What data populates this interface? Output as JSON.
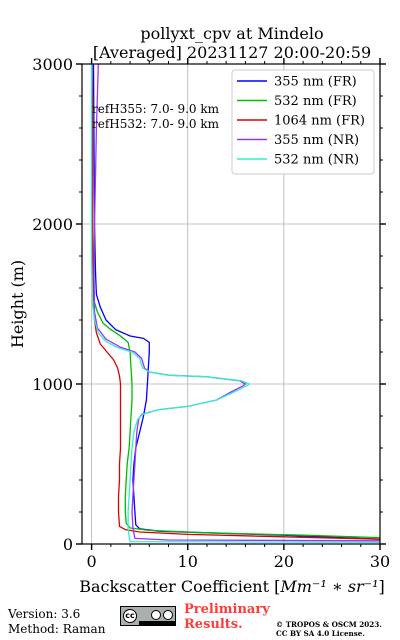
{
  "title_line1": "pollyxt_cpv at Mindelo",
  "title_line2": "[Averaged] 20231127 20:00-20:59",
  "ref_h355": "refH355:  7.0- 9.0 km",
  "ref_h532": "refH532:  7.0- 9.0 km",
  "version": "Version: 3.6",
  "method": "Method: Raman",
  "preliminary_line1": "Preliminary",
  "preliminary_line2": "Results.",
  "copyright_line1": "© TROPOS & OSCM 2023.",
  "copyright_line2": "CC BY SA 4.0 License.",
  "chart_data": {
    "type": "line",
    "xlabel_main": "Backscatter Coefficient [",
    "xlabel_unit": "Mm⁻¹ ∗ sr⁻¹",
    "xlabel_end": "]",
    "ylabel": "Height (m)",
    "xlim": [
      -1,
      30
    ],
    "ylim": [
      0,
      3000
    ],
    "x_ticks": [
      0,
      10,
      20,
      30
    ],
    "y_ticks": [
      0,
      1000,
      2000,
      3000
    ],
    "grid": true,
    "legend_position": "top-right",
    "series": [
      {
        "name": "355 nm (FR)",
        "color": "#0000ff",
        "points": [
          [
            30,
            30
          ],
          [
            26,
            40
          ],
          [
            20,
            55
          ],
          [
            12,
            70
          ],
          [
            7,
            80
          ],
          [
            5,
            95
          ],
          [
            4.6,
            120
          ],
          [
            4.5,
            200
          ],
          [
            4.4,
            300
          ],
          [
            4.3,
            400
          ],
          [
            4.4,
            500
          ],
          [
            4.6,
            600
          ],
          [
            5.0,
            700
          ],
          [
            5.4,
            800
          ],
          [
            5.7,
            900
          ],
          [
            5.8,
            1000
          ],
          [
            5.9,
            1100
          ],
          [
            6.0,
            1200
          ],
          [
            6.0,
            1260
          ],
          [
            5.4,
            1285
          ],
          [
            4.0,
            1300
          ],
          [
            2.5,
            1340
          ],
          [
            1.5,
            1400
          ],
          [
            0.9,
            1480
          ],
          [
            0.5,
            1560
          ],
          [
            0.4,
            1700
          ],
          [
            0.3,
            2000
          ],
          [
            0.25,
            2500
          ],
          [
            0.2,
            3000
          ]
        ]
      },
      {
        "name": "532 nm (FR)",
        "color": "#00bb00",
        "points": [
          [
            30,
            40
          ],
          [
            22,
            55
          ],
          [
            12,
            70
          ],
          [
            6,
            85
          ],
          [
            4,
            100
          ],
          [
            3.6,
            130
          ],
          [
            3.5,
            200
          ],
          [
            3.5,
            300
          ],
          [
            3.6,
            400
          ],
          [
            3.7,
            500
          ],
          [
            3.9,
            600
          ],
          [
            4.0,
            700
          ],
          [
            4.1,
            800
          ],
          [
            4.2,
            900
          ],
          [
            4.2,
            1000
          ],
          [
            4.1,
            1100
          ],
          [
            4.0,
            1200
          ],
          [
            3.8,
            1260
          ],
          [
            3.0,
            1300
          ],
          [
            2.0,
            1340
          ],
          [
            1.2,
            1380
          ],
          [
            0.6,
            1450
          ],
          [
            0.2,
            1530
          ],
          [
            0.1,
            1700
          ],
          [
            0.05,
            2000
          ],
          [
            0.05,
            2500
          ],
          [
            0.0,
            3000
          ]
        ]
      },
      {
        "name": "1064 nm (FR)",
        "color": "#dd0000",
        "points": [
          [
            30,
            30
          ],
          [
            20,
            45
          ],
          [
            10,
            60
          ],
          [
            5,
            75
          ],
          [
            3.5,
            90
          ],
          [
            2.9,
            110
          ],
          [
            2.8,
            200
          ],
          [
            2.8,
            300
          ],
          [
            2.9,
            400
          ],
          [
            2.9,
            500
          ],
          [
            3.0,
            600
          ],
          [
            3.0,
            700
          ],
          [
            3.0,
            800
          ],
          [
            3.0,
            900
          ],
          [
            3.0,
            1000
          ],
          [
            2.9,
            1050
          ],
          [
            2.7,
            1100
          ],
          [
            2.3,
            1150
          ],
          [
            1.6,
            1200
          ],
          [
            0.9,
            1250
          ],
          [
            0.5,
            1320
          ],
          [
            0.3,
            1400
          ],
          [
            0.2,
            1600
          ],
          [
            0.1,
            2000
          ],
          [
            0.1,
            2500
          ],
          [
            0.05,
            3000
          ]
        ]
      },
      {
        "name": "355 nm (NR)",
        "color": "#9933ff",
        "points": [
          [
            30,
            20
          ],
          [
            8,
            25
          ],
          [
            4.5,
            35
          ],
          [
            4.3,
            100
          ],
          [
            4.2,
            200
          ],
          [
            4.3,
            300
          ],
          [
            4.4,
            400
          ],
          [
            4.5,
            500
          ],
          [
            4.6,
            600
          ],
          [
            4.7,
            700
          ],
          [
            4.9,
            780
          ],
          [
            5.2,
            810
          ],
          [
            7,
            840
          ],
          [
            10,
            860
          ],
          [
            13,
            900
          ],
          [
            14.5,
            950
          ],
          [
            15.8,
            990
          ],
          [
            16.0,
            1000
          ],
          [
            15.4,
            1020
          ],
          [
            12,
            1045
          ],
          [
            8,
            1055
          ],
          [
            6,
            1075
          ],
          [
            5.5,
            1100
          ],
          [
            5.2,
            1160
          ],
          [
            4.5,
            1200
          ],
          [
            3.0,
            1230
          ],
          [
            1.5,
            1280
          ],
          [
            0.6,
            1350
          ],
          [
            0.3,
            1450
          ],
          [
            0.25,
            1700
          ],
          [
            0.3,
            2000
          ],
          [
            0.4,
            2300
          ],
          [
            0.5,
            2600
          ],
          [
            0.6,
            2800
          ],
          [
            0.7,
            3000
          ]
        ]
      },
      {
        "name": "532 nm (NR)",
        "color": "#33eecc",
        "points": [
          [
            30,
            10
          ],
          [
            4,
            15
          ],
          [
            3.9,
            50
          ],
          [
            3.8,
            100
          ],
          [
            3.8,
            200
          ],
          [
            3.9,
            300
          ],
          [
            4.0,
            400
          ],
          [
            4.1,
            500
          ],
          [
            4.2,
            600
          ],
          [
            4.4,
            700
          ],
          [
            4.8,
            780
          ],
          [
            5.3,
            810
          ],
          [
            7,
            840
          ],
          [
            10,
            860
          ],
          [
            13,
            900
          ],
          [
            14.8,
            950
          ],
          [
            16.2,
            990
          ],
          [
            16.4,
            1000
          ],
          [
            15.6,
            1020
          ],
          [
            12,
            1045
          ],
          [
            8,
            1055
          ],
          [
            6,
            1075
          ],
          [
            5.3,
            1100
          ],
          [
            5.0,
            1160
          ],
          [
            4.2,
            1200
          ],
          [
            2.8,
            1225
          ],
          [
            1.5,
            1265
          ],
          [
            0.7,
            1320
          ],
          [
            0.3,
            1400
          ],
          [
            0.1,
            1500
          ],
          [
            0.0,
            1800
          ],
          [
            0.0,
            3000
          ]
        ]
      }
    ]
  }
}
